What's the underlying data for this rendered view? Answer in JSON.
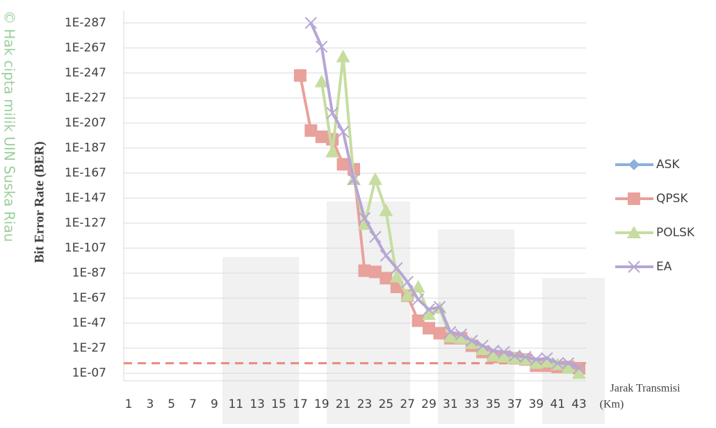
{
  "chart_data": {
    "type": "line",
    "watermark": "© Hak cipta milik UIN Suska Riau",
    "y_label": "Bit Error Rate (BER)",
    "x_label": [
      "Jarak Transmisi",
      "(Km)"
    ],
    "log_scale": true,
    "grid": true,
    "legend": "right",
    "categories": [
      "1",
      null,
      "3",
      null,
      "5",
      null,
      "7",
      null,
      "9",
      null,
      "11",
      null,
      "13",
      null,
      "15",
      null,
      "17",
      null,
      "19",
      null,
      "21",
      null,
      "23",
      null,
      "25",
      null,
      "27",
      null,
      "29",
      null,
      "31",
      null,
      "33",
      null,
      "35",
      null,
      "37",
      null,
      "39",
      null,
      "41",
      null,
      "43"
    ],
    "ylim": [
      0.1,
      1e-297
    ],
    "yticks": [
      {
        "value": 1e-287,
        "label": "1E-287"
      },
      {
        "value": 1e-267,
        "label": "1E-267"
      },
      {
        "value": 1e-247,
        "label": "1E-247"
      },
      {
        "value": 1e-227,
        "label": "1E-227"
      },
      {
        "value": 1e-207,
        "label": "1E-207"
      },
      {
        "value": 1e-187,
        "label": "1E-187"
      },
      {
        "value": 1e-167,
        "label": "1E-167"
      },
      {
        "value": 1e-147,
        "label": "1E-147"
      },
      {
        "value": 1e-127,
        "label": "1E-127"
      },
      {
        "value": 1e-107,
        "label": "1E-107"
      },
      {
        "value": 1e-87,
        "label": "1E-87"
      },
      {
        "value": 1e-67,
        "label": "1E-67"
      },
      {
        "value": 1e-47,
        "label": "1E-47"
      },
      {
        "value": 1e-27,
        "label": "1E-27"
      },
      {
        "value": 1e-07,
        "label": "1E-07"
      }
    ],
    "reference_line": {
      "value": 1e-15,
      "color": "#e8877f"
    },
    "series": [
      {
        "name": "ASK",
        "color": "#8cb0dc",
        "marker": "diamond",
        "values": [
          null,
          null,
          null,
          null,
          null,
          null,
          null,
          null,
          null,
          null,
          null,
          null,
          null,
          null,
          null,
          null,
          null,
          null,
          null,
          null,
          null,
          null,
          null,
          null,
          null,
          null,
          null,
          null,
          null,
          null,
          null,
          null,
          null,
          null,
          null,
          null,
          null,
          null,
          null,
          null,
          null,
          null,
          null
        ]
      },
      {
        "name": "QPSK",
        "color": "#e8a19b",
        "marker": "square",
        "values": [
          null,
          null,
          null,
          null,
          null,
          null,
          null,
          null,
          null,
          null,
          null,
          null,
          null,
          null,
          null,
          null,
          1e-245,
          1e-201,
          1e-196,
          1e-194,
          1e-174,
          1e-170,
          1e-89,
          1e-88,
          1e-83,
          1e-76,
          1e-69,
          1e-49,
          1e-43,
          1e-39,
          1e-35,
          1e-35,
          1e-29,
          1e-24,
          1e-20,
          1e-20,
          1e-19,
          1e-18,
          1e-13,
          1e-13,
          1e-12,
          1e-12,
          1e-11
        ]
      },
      {
        "name": "POLSK",
        "color": "#c6dd9f",
        "marker": "triangle",
        "values": [
          null,
          null,
          null,
          null,
          null,
          null,
          null,
          null,
          null,
          null,
          null,
          null,
          null,
          null,
          null,
          null,
          null,
          null,
          1e-240,
          1e-184,
          1e-260,
          1e-162,
          1e-126,
          1e-162,
          1e-137,
          1e-84,
          1e-69,
          1e-76,
          1e-54,
          1e-59,
          1e-36,
          1e-35,
          1e-31,
          1e-26,
          1e-21,
          1e-20,
          1e-19,
          1e-18,
          1e-15,
          1e-16,
          1e-14,
          1e-11,
          1e-07
        ]
      },
      {
        "name": "EA",
        "color": "#b6a6d4",
        "marker": "x",
        "values": [
          null,
          null,
          null,
          null,
          null,
          null,
          null,
          null,
          null,
          null,
          null,
          null,
          null,
          null,
          null,
          null,
          null,
          1e-287,
          1e-268,
          1e-215,
          1e-200,
          1e-162,
          1e-131,
          1e-116,
          1e-101,
          1e-91,
          1e-80,
          1e-66,
          1e-58,
          1e-60,
          1e-40,
          1e-38,
          1e-33,
          1e-29,
          1e-25,
          1e-24,
          1e-21,
          1e-20,
          1e-18,
          1e-19,
          1e-15,
          1e-15,
          1e-11
        ]
      }
    ]
  }
}
